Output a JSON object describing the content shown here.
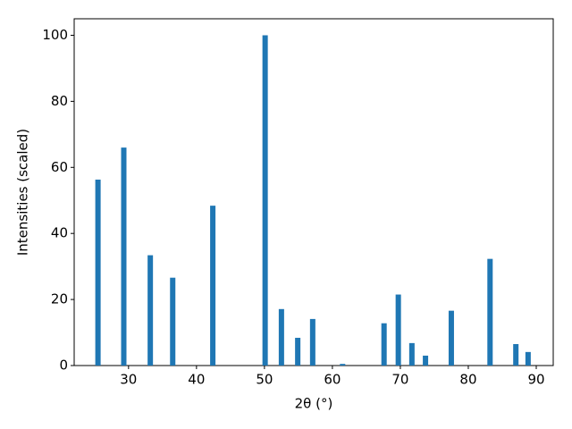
{
  "chart_data": {
    "type": "bar",
    "x": [
      25.5,
      29.3,
      33.2,
      36.5,
      42.4,
      50.1,
      52.5,
      54.9,
      57.1,
      61.5,
      67.6,
      69.7,
      71.7,
      73.7,
      77.5,
      83.2,
      87.0,
      88.8
    ],
    "values": [
      56.3,
      66.0,
      33.4,
      26.6,
      48.4,
      100,
      17.1,
      8.4,
      14.1,
      0.5,
      12.8,
      21.5,
      6.8,
      3.0,
      16.6,
      32.3,
      6.5,
      4.1
    ],
    "color": "#1f77b4",
    "xlabel": "2θ (°)",
    "ylabel": "Intensities (scaled)",
    "xlim": [
      22,
      92.5
    ],
    "ylim": [
      0,
      105
    ],
    "xticks": [
      30,
      40,
      50,
      60,
      70,
      80,
      90
    ],
    "yticks": [
      0,
      20,
      40,
      60,
      80,
      100
    ],
    "grid": false
  }
}
